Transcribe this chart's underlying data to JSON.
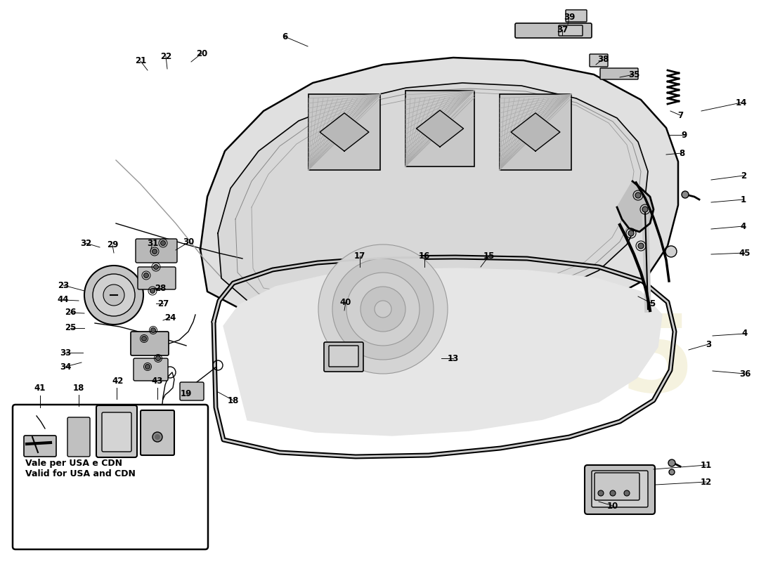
{
  "bg_color": "#ffffff",
  "watermark_color": "#d4c87a",
  "inset_label_line1": "Vale per USA e CDN",
  "inset_label_line2": "Valid for USA and CDN",
  "line_color": "#000000"
}
